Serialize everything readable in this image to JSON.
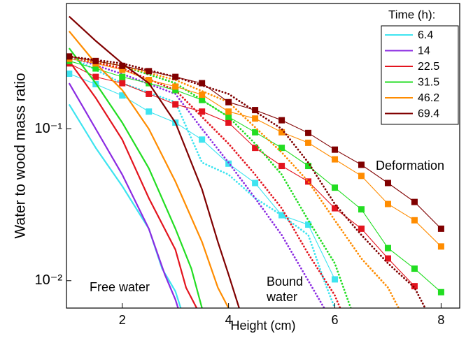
{
  "chart_data": {
    "type": "line",
    "xlabel": "Height (cm)",
    "ylabel": "Water to wood mass ratio",
    "xlim": [
      0.95,
      8.35
    ],
    "ylim": [
      0.0066,
      0.67
    ],
    "ylog": true,
    "xticks": [
      2,
      4,
      6,
      8
    ],
    "yticks": [
      {
        "value": 0.1,
        "label": "10⁻¹"
      },
      {
        "value": 0.01,
        "label": "10⁻²"
      }
    ],
    "legend_title": "Time (h):",
    "legend": "upper right",
    "annotations": [
      "Free water",
      "Bound water",
      "Deformation"
    ],
    "series": [
      {
        "name": "6.4",
        "color": "#3ee4f0",
        "free_water": {
          "x": [
            1,
            1.5,
            2,
            2.5,
            2.75,
            3,
            3.1
          ],
          "values": [
            0.145,
            0.075,
            0.042,
            0.022,
            0.012,
            0.0085,
            0.0066
          ]
        },
        "bound_water": {
          "x": [
            1,
            2,
            3,
            3.5,
            4,
            4.5,
            5,
            5.5,
            5.8,
            6
          ],
          "values": [
            0.3,
            0.2,
            0.15,
            0.06,
            0.05,
            0.035,
            0.027,
            0.02,
            0.01,
            0.0066
          ]
        },
        "deformation": {
          "x": [
            1,
            1.5,
            2,
            2.5,
            3,
            3.5,
            4,
            4.5,
            5,
            5.5,
            6
          ],
          "values": [
            0.231,
            0.197,
            0.166,
            0.13,
            0.11,
            0.085,
            0.059,
            0.044,
            0.027,
            0.0234,
            0.0102
          ]
        }
      },
      {
        "name": "14",
        "color": "#8b2be2",
        "free_water": {
          "x": [
            1,
            1.5,
            2,
            2.5,
            2.8,
            3,
            3.05
          ],
          "values": [
            0.2,
            0.1,
            0.05,
            0.022,
            0.011,
            0.0075,
            0.0066
          ]
        },
        "bound_water": {
          "x": [
            1,
            2,
            3,
            3.5,
            4,
            4.5,
            5,
            5.5,
            5.8
          ],
          "values": [
            0.3,
            0.23,
            0.17,
            0.1,
            0.06,
            0.035,
            0.02,
            0.01,
            0.0066
          ]
        }
      },
      {
        "name": "22.5",
        "color": "#e3141e",
        "free_water": {
          "x": [
            1,
            1.5,
            2,
            2.5,
            3,
            3.2,
            3.4
          ],
          "values": [
            0.28,
            0.16,
            0.085,
            0.035,
            0.016,
            0.009,
            0.0066
          ]
        },
        "bound_water": {
          "x": [
            1,
            2,
            3,
            3.5,
            4,
            4.5,
            5,
            5.5,
            6,
            6.1
          ],
          "values": [
            0.3,
            0.25,
            0.18,
            0.12,
            0.08,
            0.05,
            0.03,
            0.015,
            0.008,
            0.0066
          ]
        },
        "deformation": {
          "x": [
            1,
            1.5,
            2,
            2.5,
            3,
            3.5,
            4,
            4.5,
            5,
            5.5,
            6,
            6.5,
            7,
            7.5,
            8
          ],
          "values": [
            0.27,
            0.22,
            0.2,
            0.17,
            0.145,
            0.13,
            0.11,
            0.075,
            0.057,
            0.045,
            0.03,
            0.022,
            0.014,
            0.0092,
            null
          ]
        }
      },
      {
        "name": "31.5",
        "color": "#22dd22",
        "free_water": {
          "x": [
            1,
            1.5,
            2,
            2.5,
            3,
            3.3,
            3.5
          ],
          "values": [
            0.34,
            0.2,
            0.11,
            0.055,
            0.022,
            0.012,
            0.0066
          ]
        },
        "bound_water": {
          "x": [
            1,
            2,
            3,
            4,
            4.5,
            5,
            5.5,
            6,
            6.3
          ],
          "values": [
            0.3,
            0.26,
            0.2,
            0.12,
            0.08,
            0.05,
            0.025,
            0.013,
            0.0066
          ]
        },
        "deformation": {
          "x": [
            1,
            1.5,
            2,
            2.5,
            3,
            3.5,
            4,
            4.5,
            5,
            5.5,
            6,
            6.5,
            7,
            7.5,
            8
          ],
          "values": [
            0.28,
            0.25,
            0.22,
            0.2,
            0.18,
            0.155,
            0.12,
            0.095,
            0.075,
            0.057,
            0.041,
            0.0295,
            0.0164,
            0.012,
            0.0084
          ]
        }
      },
      {
        "name": "46.2",
        "color": "#ff8c00",
        "free_water": {
          "x": [
            1,
            1.5,
            2,
            2.5,
            3,
            3.5,
            3.8,
            4
          ],
          "values": [
            0.44,
            0.27,
            0.18,
            0.1,
            0.045,
            0.018,
            0.009,
            0.0066
          ]
        },
        "bound_water": {
          "x": [
            1,
            2,
            3,
            4,
            5,
            5.5,
            6,
            6.5,
            7,
            7.2
          ],
          "values": [
            0.3,
            0.26,
            0.21,
            0.15,
            0.07,
            0.045,
            0.025,
            0.014,
            0.009,
            0.0066
          ]
        },
        "deformation": {
          "x": [
            1,
            1.5,
            2,
            2.5,
            3,
            3.5,
            4,
            4.5,
            5,
            5.5,
            6,
            6.5,
            7,
            7.5,
            8
          ],
          "values": [
            0.29,
            0.27,
            0.245,
            0.21,
            0.19,
            0.168,
            0.13,
            0.117,
            0.095,
            0.081,
            0.063,
            0.049,
            0.032,
            0.025,
            0.0168
          ]
        }
      },
      {
        "name": "69.4",
        "color": "#800000",
        "free_water": {
          "x": [
            1,
            1.5,
            2,
            2.5,
            3,
            3.5,
            3.8,
            4,
            4.2
          ],
          "values": [
            0.55,
            0.38,
            0.27,
            0.2,
            0.11,
            0.04,
            0.018,
            0.011,
            0.0066
          ]
        },
        "bound_water": {
          "x": [
            1,
            2,
            3,
            4,
            5,
            5.5,
            6,
            6.5,
            7,
            7.5,
            7.7
          ],
          "values": [
            0.3,
            0.27,
            0.22,
            0.17,
            0.1,
            0.06,
            0.032,
            0.02,
            0.013,
            0.009,
            0.0066
          ]
        },
        "deformation": {
          "x": [
            1,
            1.5,
            2,
            2.5,
            3,
            3.5,
            4,
            4.5,
            5,
            5.5,
            6,
            6.5,
            7,
            7.5,
            8
          ],
          "values": [
            0.3,
            0.28,
            0.26,
            0.24,
            0.22,
            0.2,
            0.15,
            0.133,
            0.114,
            0.094,
            0.073,
            0.058,
            0.044,
            0.033,
            0.022
          ]
        }
      }
    ]
  }
}
